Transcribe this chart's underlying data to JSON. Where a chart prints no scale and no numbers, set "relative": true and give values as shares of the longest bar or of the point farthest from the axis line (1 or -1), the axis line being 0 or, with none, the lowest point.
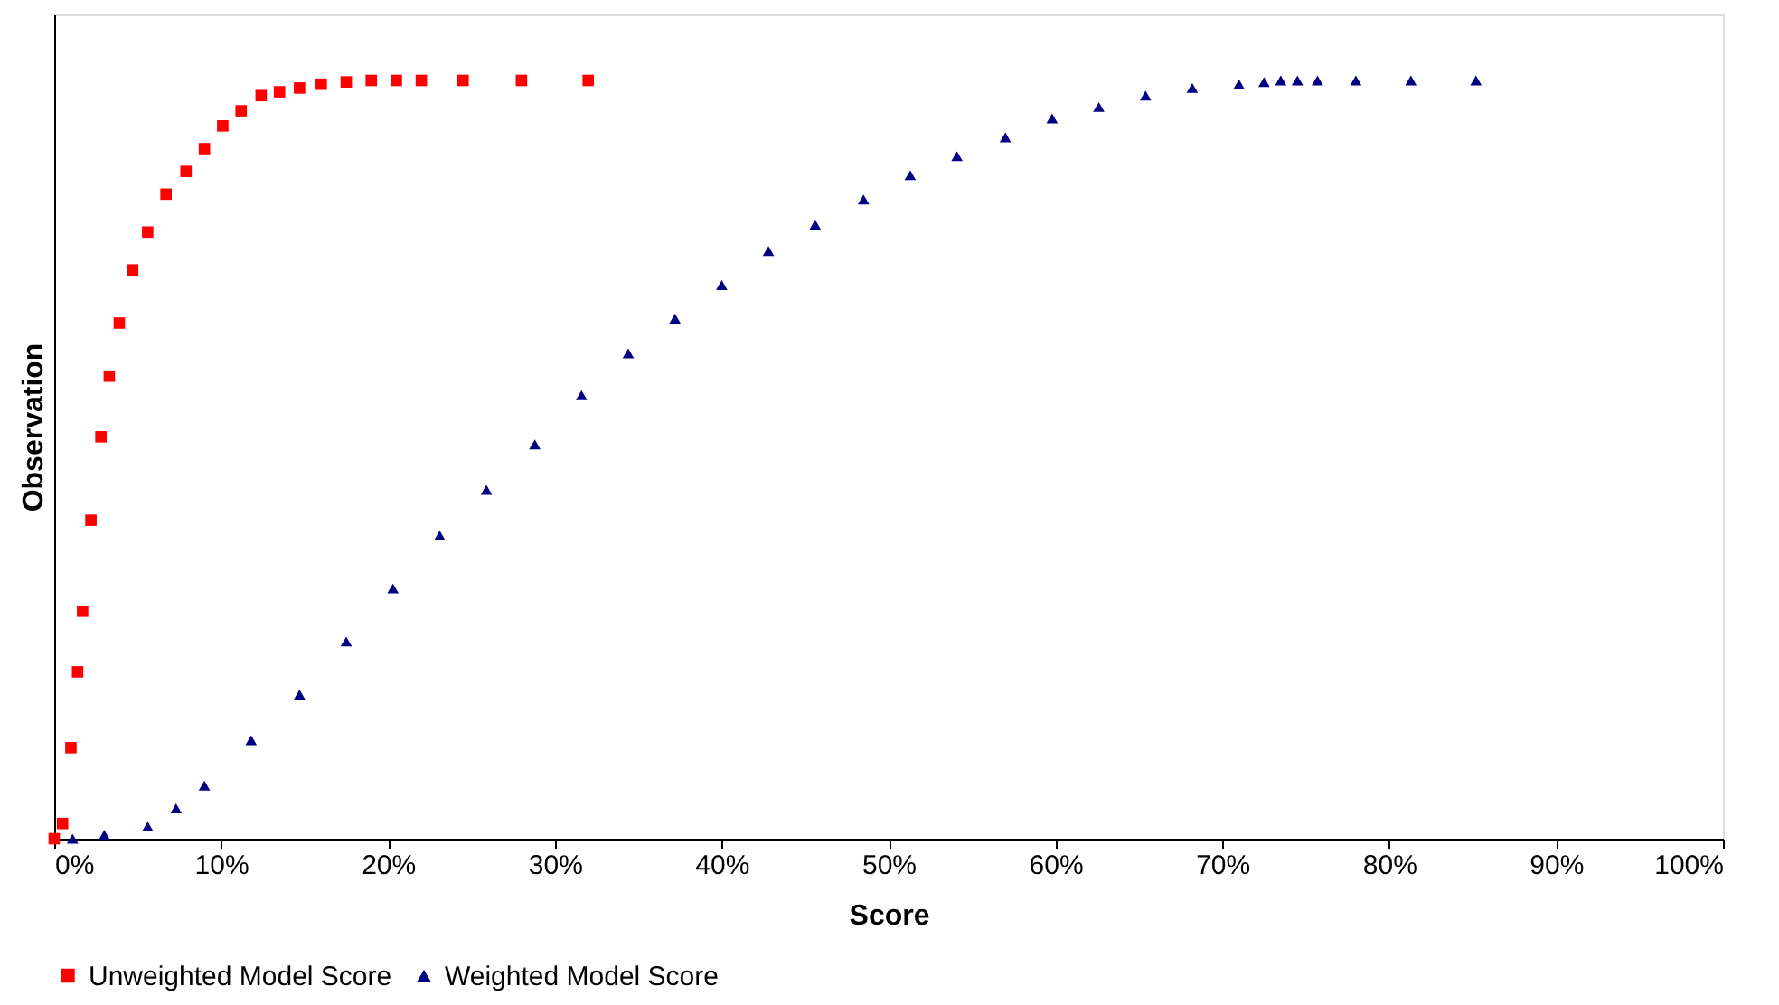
{
  "chart_data": {
    "type": "scatter",
    "relative": true,
    "xlabel": "Score",
    "ylabel": "Observation",
    "xlim": [
      0,
      100
    ],
    "xticks": [
      {
        "value": 0,
        "label": "0%"
      },
      {
        "value": 10,
        "label": "10%"
      },
      {
        "value": 20,
        "label": "20%"
      },
      {
        "value": 30,
        "label": "30%"
      },
      {
        "value": 40,
        "label": "40%"
      },
      {
        "value": 50,
        "label": "50%"
      },
      {
        "value": 60,
        "label": "60%"
      },
      {
        "value": 70,
        "label": "70%"
      },
      {
        "value": 80,
        "label": "80%"
      },
      {
        "value": 90,
        "label": "90%"
      },
      {
        "value": 100,
        "label": "100%"
      }
    ],
    "tick_labels": "x",
    "grid": false,
    "legend": "bottom",
    "series": [
      {
        "name": "Unweighted Model Score",
        "color": "#ff0000",
        "marker": "square",
        "x": [
          0,
          0.5,
          1,
          1.4,
          1.7,
          2.2,
          2.8,
          3.3,
          3.9,
          4.7,
          5.6,
          6.7,
          7.9,
          9,
          10.1,
          11.2,
          12.4,
          13.5,
          14.7,
          16,
          17.5,
          19,
          20.5,
          22,
          24.5,
          28,
          32
        ],
        "values": [
          0,
          0.02,
          0.12,
          0.22,
          0.3,
          0.42,
          0.53,
          0.61,
          0.68,
          0.75,
          0.8,
          0.85,
          0.88,
          0.91,
          0.94,
          0.96,
          0.98,
          0.985,
          0.99,
          0.995,
          0.998,
          1,
          1,
          1,
          1,
          1,
          1
        ]
      },
      {
        "name": "Weighted Model Score",
        "color": "#000080",
        "marker": "triangle",
        "x": [
          1.1,
          3,
          5.6,
          7.3,
          9,
          11.8,
          14.7,
          17.5,
          20.3,
          23.1,
          25.9,
          28.8,
          31.6,
          34.4,
          37.2,
          40,
          42.8,
          45.6,
          48.5,
          51.3,
          54.1,
          57,
          59.8,
          62.6,
          65.4,
          68.2,
          71,
          72.5,
          73.5,
          74.5,
          75.7,
          78,
          81.3,
          85.2
        ],
        "values": [
          0,
          0.005,
          0.016,
          0.04,
          0.07,
          0.13,
          0.19,
          0.26,
          0.33,
          0.4,
          0.46,
          0.52,
          0.585,
          0.64,
          0.686,
          0.73,
          0.775,
          0.81,
          0.843,
          0.875,
          0.9,
          0.925,
          0.95,
          0.965,
          0.98,
          0.99,
          0.995,
          0.998,
          1,
          1,
          1,
          1,
          1,
          1
        ]
      }
    ]
  }
}
